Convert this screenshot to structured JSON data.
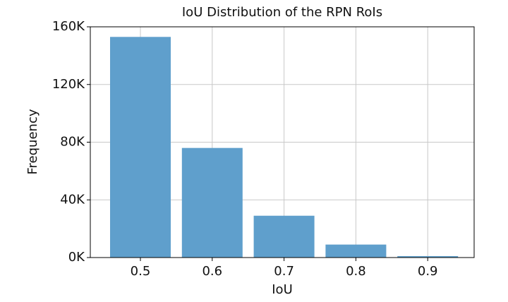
{
  "chart_data": {
    "type": "bar",
    "title": "IoU Distribution of the RPN RoIs",
    "x_label": "IoU",
    "y_label": "Frequency",
    "categories": [
      "0.5",
      "0.6",
      "0.7",
      "0.8",
      "0.9"
    ],
    "values": [
      153000,
      76000,
      29000,
      9000,
      1000
    ],
    "color": "#5f9fcc",
    "ylim": [
      0,
      160000
    ],
    "yticks": [
      {
        "value": 0,
        "label": "0K"
      },
      {
        "value": 40000,
        "label": "40K"
      },
      {
        "value": 80000,
        "label": "80K"
      },
      {
        "value": 120000,
        "label": "120K"
      },
      {
        "value": 160000,
        "label": "160K"
      }
    ],
    "grid": true
  }
}
